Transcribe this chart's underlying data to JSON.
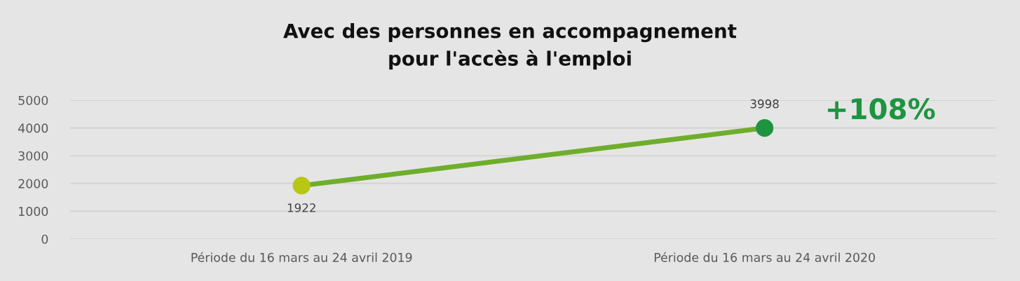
{
  "chart_data": {
    "type": "line",
    "title": "Avec des personnes en accompagnement\npour l'accès à l'emploi",
    "categories": [
      "Période du 16 mars au 24 avril 2019",
      "Période du 16 mars au 24 avril 2020"
    ],
    "series": [
      {
        "color": "#6fae2c",
        "colors": [
          "#b8c614",
          "#1f9440"
        ],
        "values": [
          1922,
          3998
        ]
      }
    ],
    "ylim": [
      0,
      5000
    ],
    "yticks": [
      0,
      1000,
      2000,
      3000,
      4000,
      5000
    ],
    "grid": "y",
    "marker": "circle",
    "line_style": "solid",
    "data_labels": true,
    "annotations": [
      "+108%"
    ]
  }
}
